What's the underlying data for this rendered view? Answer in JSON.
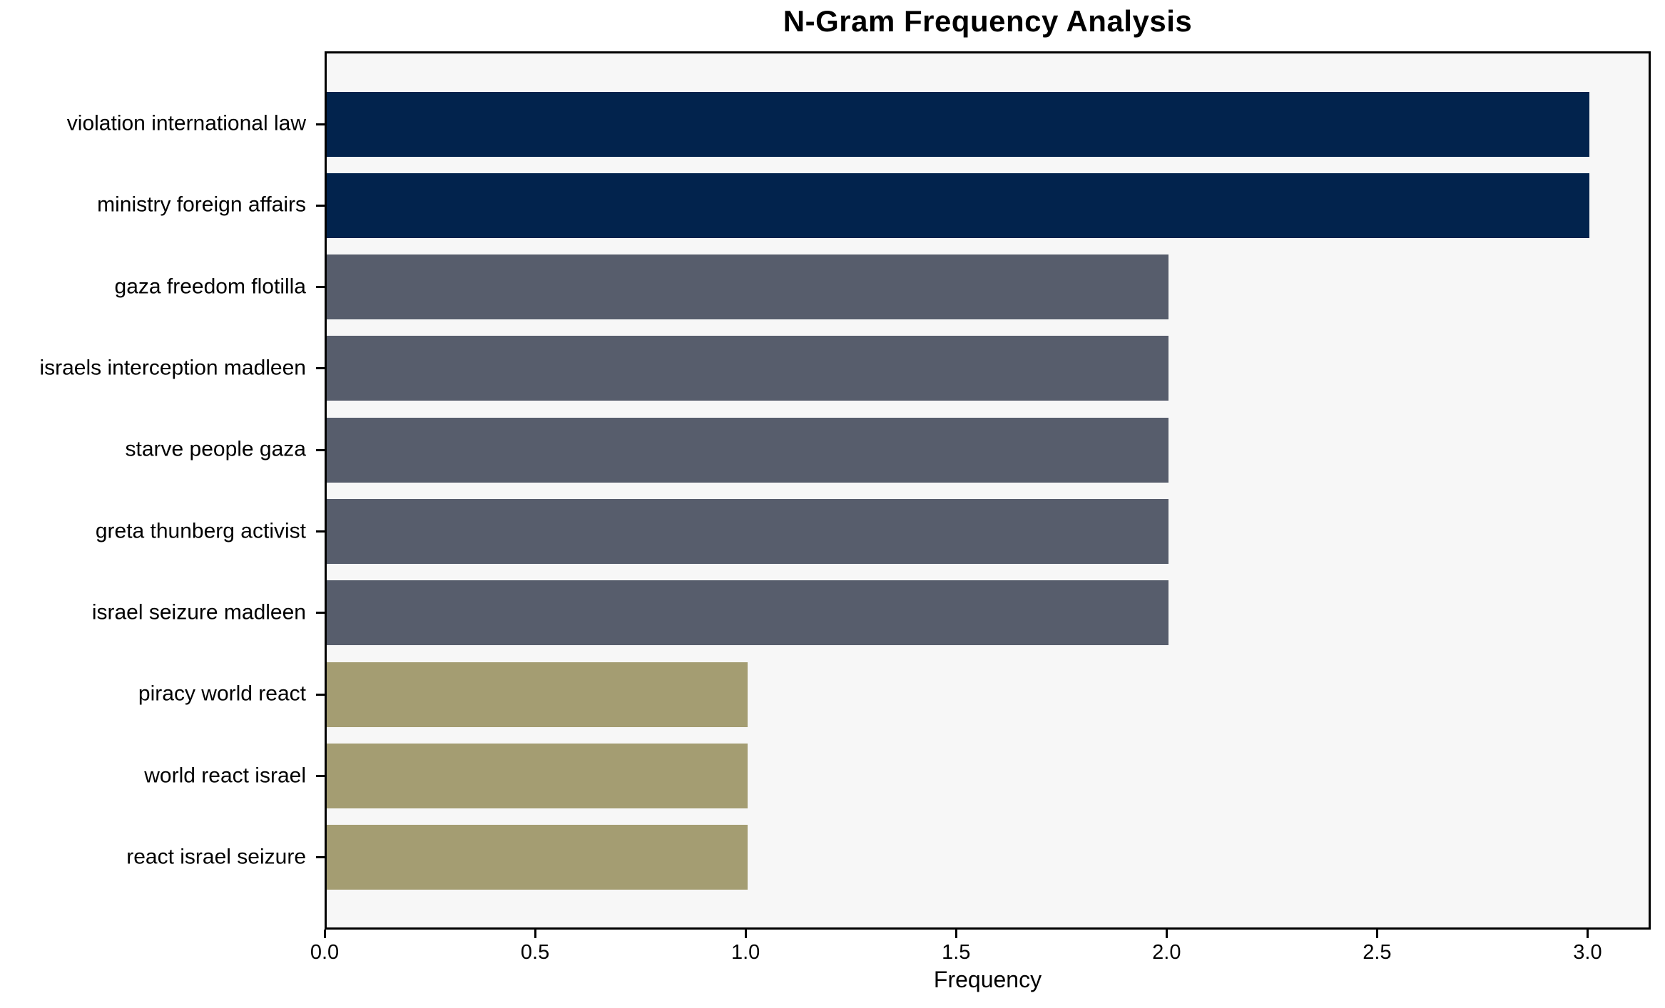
{
  "chart_data": {
    "type": "bar",
    "orientation": "horizontal",
    "title": "N-Gram Frequency Analysis",
    "xlabel": "Frequency",
    "ylabel": "",
    "categories": [
      "violation international law",
      "ministry foreign affairs",
      "gaza freedom flotilla",
      "israels interception madleen",
      "starve people gaza",
      "greta thunberg activist",
      "israel seizure madleen",
      "piracy world react",
      "world react israel",
      "react israel seizure"
    ],
    "values": [
      3,
      3,
      2,
      2,
      2,
      2,
      2,
      1,
      1,
      1
    ],
    "bar_colors": [
      "#02234d",
      "#02234d",
      "#575d6c",
      "#575d6c",
      "#575d6c",
      "#575d6c",
      "#575d6c",
      "#a49d72",
      "#a49d72",
      "#a49d72"
    ],
    "x_ticks": [
      "0.0",
      "0.5",
      "1.0",
      "1.5",
      "2.0",
      "2.5",
      "3.0"
    ],
    "x_tick_values": [
      0,
      0.5,
      1,
      1.5,
      2,
      2.5,
      3
    ],
    "xlim": [
      0,
      3.15
    ],
    "grid": false,
    "legend": null,
    "colors": {
      "plot_background": "#f7f7f7",
      "figure_background": "#ffffff",
      "frame": "#000000",
      "text": "#000000"
    }
  }
}
